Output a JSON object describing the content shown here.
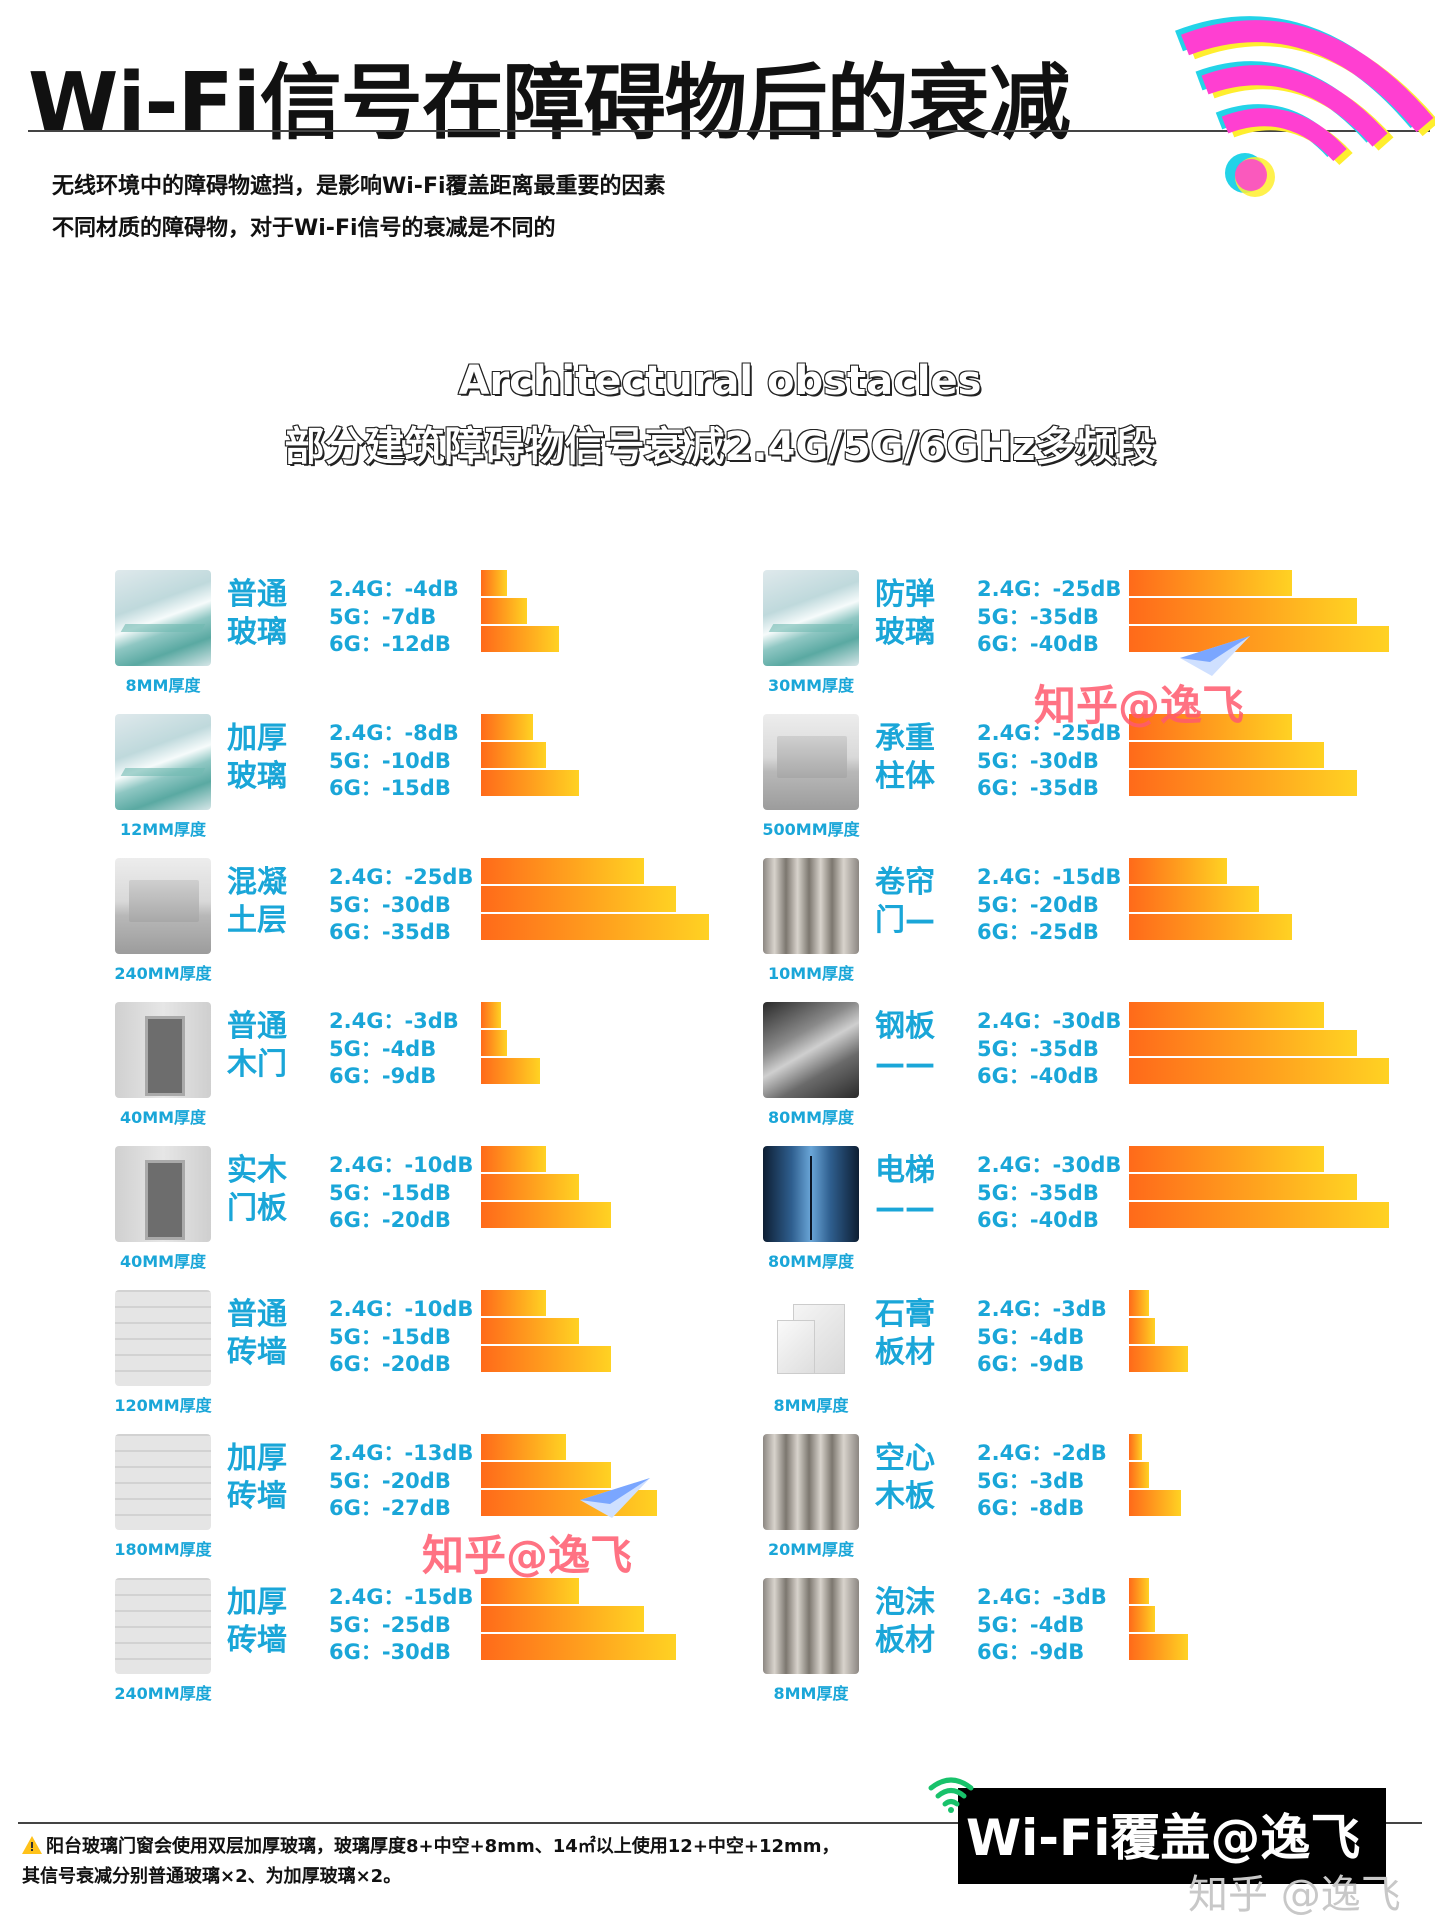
{
  "title": "Wi-Fi信号在障碍物后的衰减",
  "intro": [
    "无线环境中的障碍物遮挡，是影响Wi-Fi覆盖距离最重要的因素",
    "不同材质的障碍物，对于Wi-Fi信号的衰减是不同的"
  ],
  "heading": {
    "en": "Architectural obstacles",
    "cn": "部分建筑障碍物信号衰减2.4G/5G/6GHz多频段"
  },
  "chart_data": {
    "type": "bar",
    "orientation": "horizontal",
    "unit": "dB",
    "bands": [
      "2.4G",
      "5G",
      "6G"
    ],
    "colors": {
      "bar_start": "#ff6a1a",
      "bar_end": "#ffd223",
      "label": "#1aa6d8"
    },
    "materials": [
      {
        "name": [
          "普通",
          "玻璃"
        ],
        "thickness": "8MM厚度",
        "thumb": "glass",
        "values": [
          -4,
          -7,
          -12
        ],
        "labels": [
          "2.4G：-4dB",
          "5G：-7dB",
          "6G：-12dB"
        ]
      },
      {
        "name": [
          "加厚",
          "玻璃"
        ],
        "thickness": "12MM厚度",
        "thumb": "glass",
        "values": [
          -8,
          -10,
          -15
        ],
        "labels": [
          "2.4G：-8dB",
          "5G：-10dB",
          "6G：-15dB"
        ]
      },
      {
        "name": [
          "混凝",
          "土层"
        ],
        "thickness": "240MM厚度",
        "thumb": "concrete",
        "values": [
          -25,
          -30,
          -35
        ],
        "labels": [
          "2.4G：-25dB",
          "5G：-30dB",
          "6G：-35dB"
        ]
      },
      {
        "name": [
          "普通",
          "木门"
        ],
        "thickness": "40MM厚度",
        "thumb": "door",
        "values": [
          -3,
          -4,
          -9
        ],
        "labels": [
          "2.4G：-3dB",
          "5G：-4dB",
          "6G：-9dB"
        ]
      },
      {
        "name": [
          "实木",
          "门板"
        ],
        "thickness": "40MM厚度",
        "thumb": "door",
        "values": [
          -10,
          -15,
          -20
        ],
        "labels": [
          "2.4G：-10dB",
          "5G：-15dB",
          "6G：-20dB"
        ]
      },
      {
        "name": [
          "普通",
          "砖墙"
        ],
        "thickness": "120MM厚度",
        "thumb": "brick",
        "values": [
          -10,
          -15,
          -20
        ],
        "labels": [
          "2.4G：-10dB",
          "5G：-15dB",
          "6G：-20dB"
        ]
      },
      {
        "name": [
          "加厚",
          "砖墙"
        ],
        "thickness": "180MM厚度",
        "thumb": "brick",
        "values": [
          -13,
          -20,
          -27
        ],
        "labels": [
          "2.4G：-13dB",
          "5G：-20dB",
          "6G：-27dB"
        ]
      },
      {
        "name": [
          "加厚",
          "砖墙"
        ],
        "thickness": "240MM厚度",
        "thumb": "brick",
        "values": [
          -15,
          -25,
          -30
        ],
        "labels": [
          "2.4G：-15dB",
          "5G：-25dB",
          "6G：-30dB"
        ]
      },
      {
        "name": [
          "防弹",
          "玻璃"
        ],
        "thickness": "30MM厚度",
        "thumb": "glass",
        "values": [
          -25,
          -35,
          -40
        ],
        "labels": [
          "2.4G：-25dB",
          "5G：-35dB",
          "6G：-40dB"
        ]
      },
      {
        "name": [
          "承重",
          "柱体"
        ],
        "thickness": "500MM厚度",
        "thumb": "concrete",
        "values": [
          -25,
          -30,
          -35
        ],
        "labels": [
          "2.4G：-25dB",
          "5G：-30dB",
          "6G：-35dB"
        ]
      },
      {
        "name": [
          "卷帘",
          "门—"
        ],
        "thickness": "10MM厚度",
        "thumb": "metal",
        "values": [
          -15,
          -20,
          -25
        ],
        "labels": [
          "2.4G：-15dB",
          "5G：-20dB",
          "6G：-25dB"
        ]
      },
      {
        "name": [
          "钢板",
          "——"
        ],
        "thickness": "80MM厚度",
        "thumb": "steel",
        "values": [
          -30,
          -35,
          -40
        ],
        "labels": [
          "2.4G：-30dB",
          "5G：-35dB",
          "6G：-40dB"
        ]
      },
      {
        "name": [
          "电梯",
          "——"
        ],
        "thickness": "80MM厚度",
        "thumb": "elevator",
        "values": [
          -30,
          -35,
          -40
        ],
        "labels": [
          "2.4G：-30dB",
          "5G：-35dB",
          "6G：-40dB"
        ]
      },
      {
        "name": [
          "石膏",
          "板材"
        ],
        "thickness": "8MM厚度",
        "thumb": "gypsum",
        "values": [
          -3,
          -4,
          -9
        ],
        "labels": [
          "2.4G：-3dB",
          "5G：-4dB",
          "6G：-9dB"
        ]
      },
      {
        "name": [
          "空心",
          "木板"
        ],
        "thickness": "20MM厚度",
        "thumb": "metal",
        "values": [
          -2,
          -3,
          -8
        ],
        "labels": [
          "2.4G：-2dB",
          "5G：-3dB",
          "6G：-8dB"
        ]
      },
      {
        "name": [
          "泡沫",
          "板材"
        ],
        "thickness": "8MM厚度",
        "thumb": "metal",
        "values": [
          -3,
          -4,
          -9
        ],
        "labels": [
          "2.4G：-3dB",
          "5G：-4dB",
          "6G：-9dB"
        ]
      }
    ]
  },
  "watermark": "知乎@逸飞",
  "footer": {
    "note_line1": "阳台玻璃门窗会使用双层加厚玻璃，玻璃厚度8+中空+8mm、14㎡以上使用12+中空+12mm，",
    "note_line2": "其信号衰减分别普通玻璃×2、为加厚玻璃×2。",
    "warn_icon": "warning-icon",
    "brand": "Wi-Fi覆盖@逸飞",
    "zhihu": "知乎 @逸飞"
  }
}
